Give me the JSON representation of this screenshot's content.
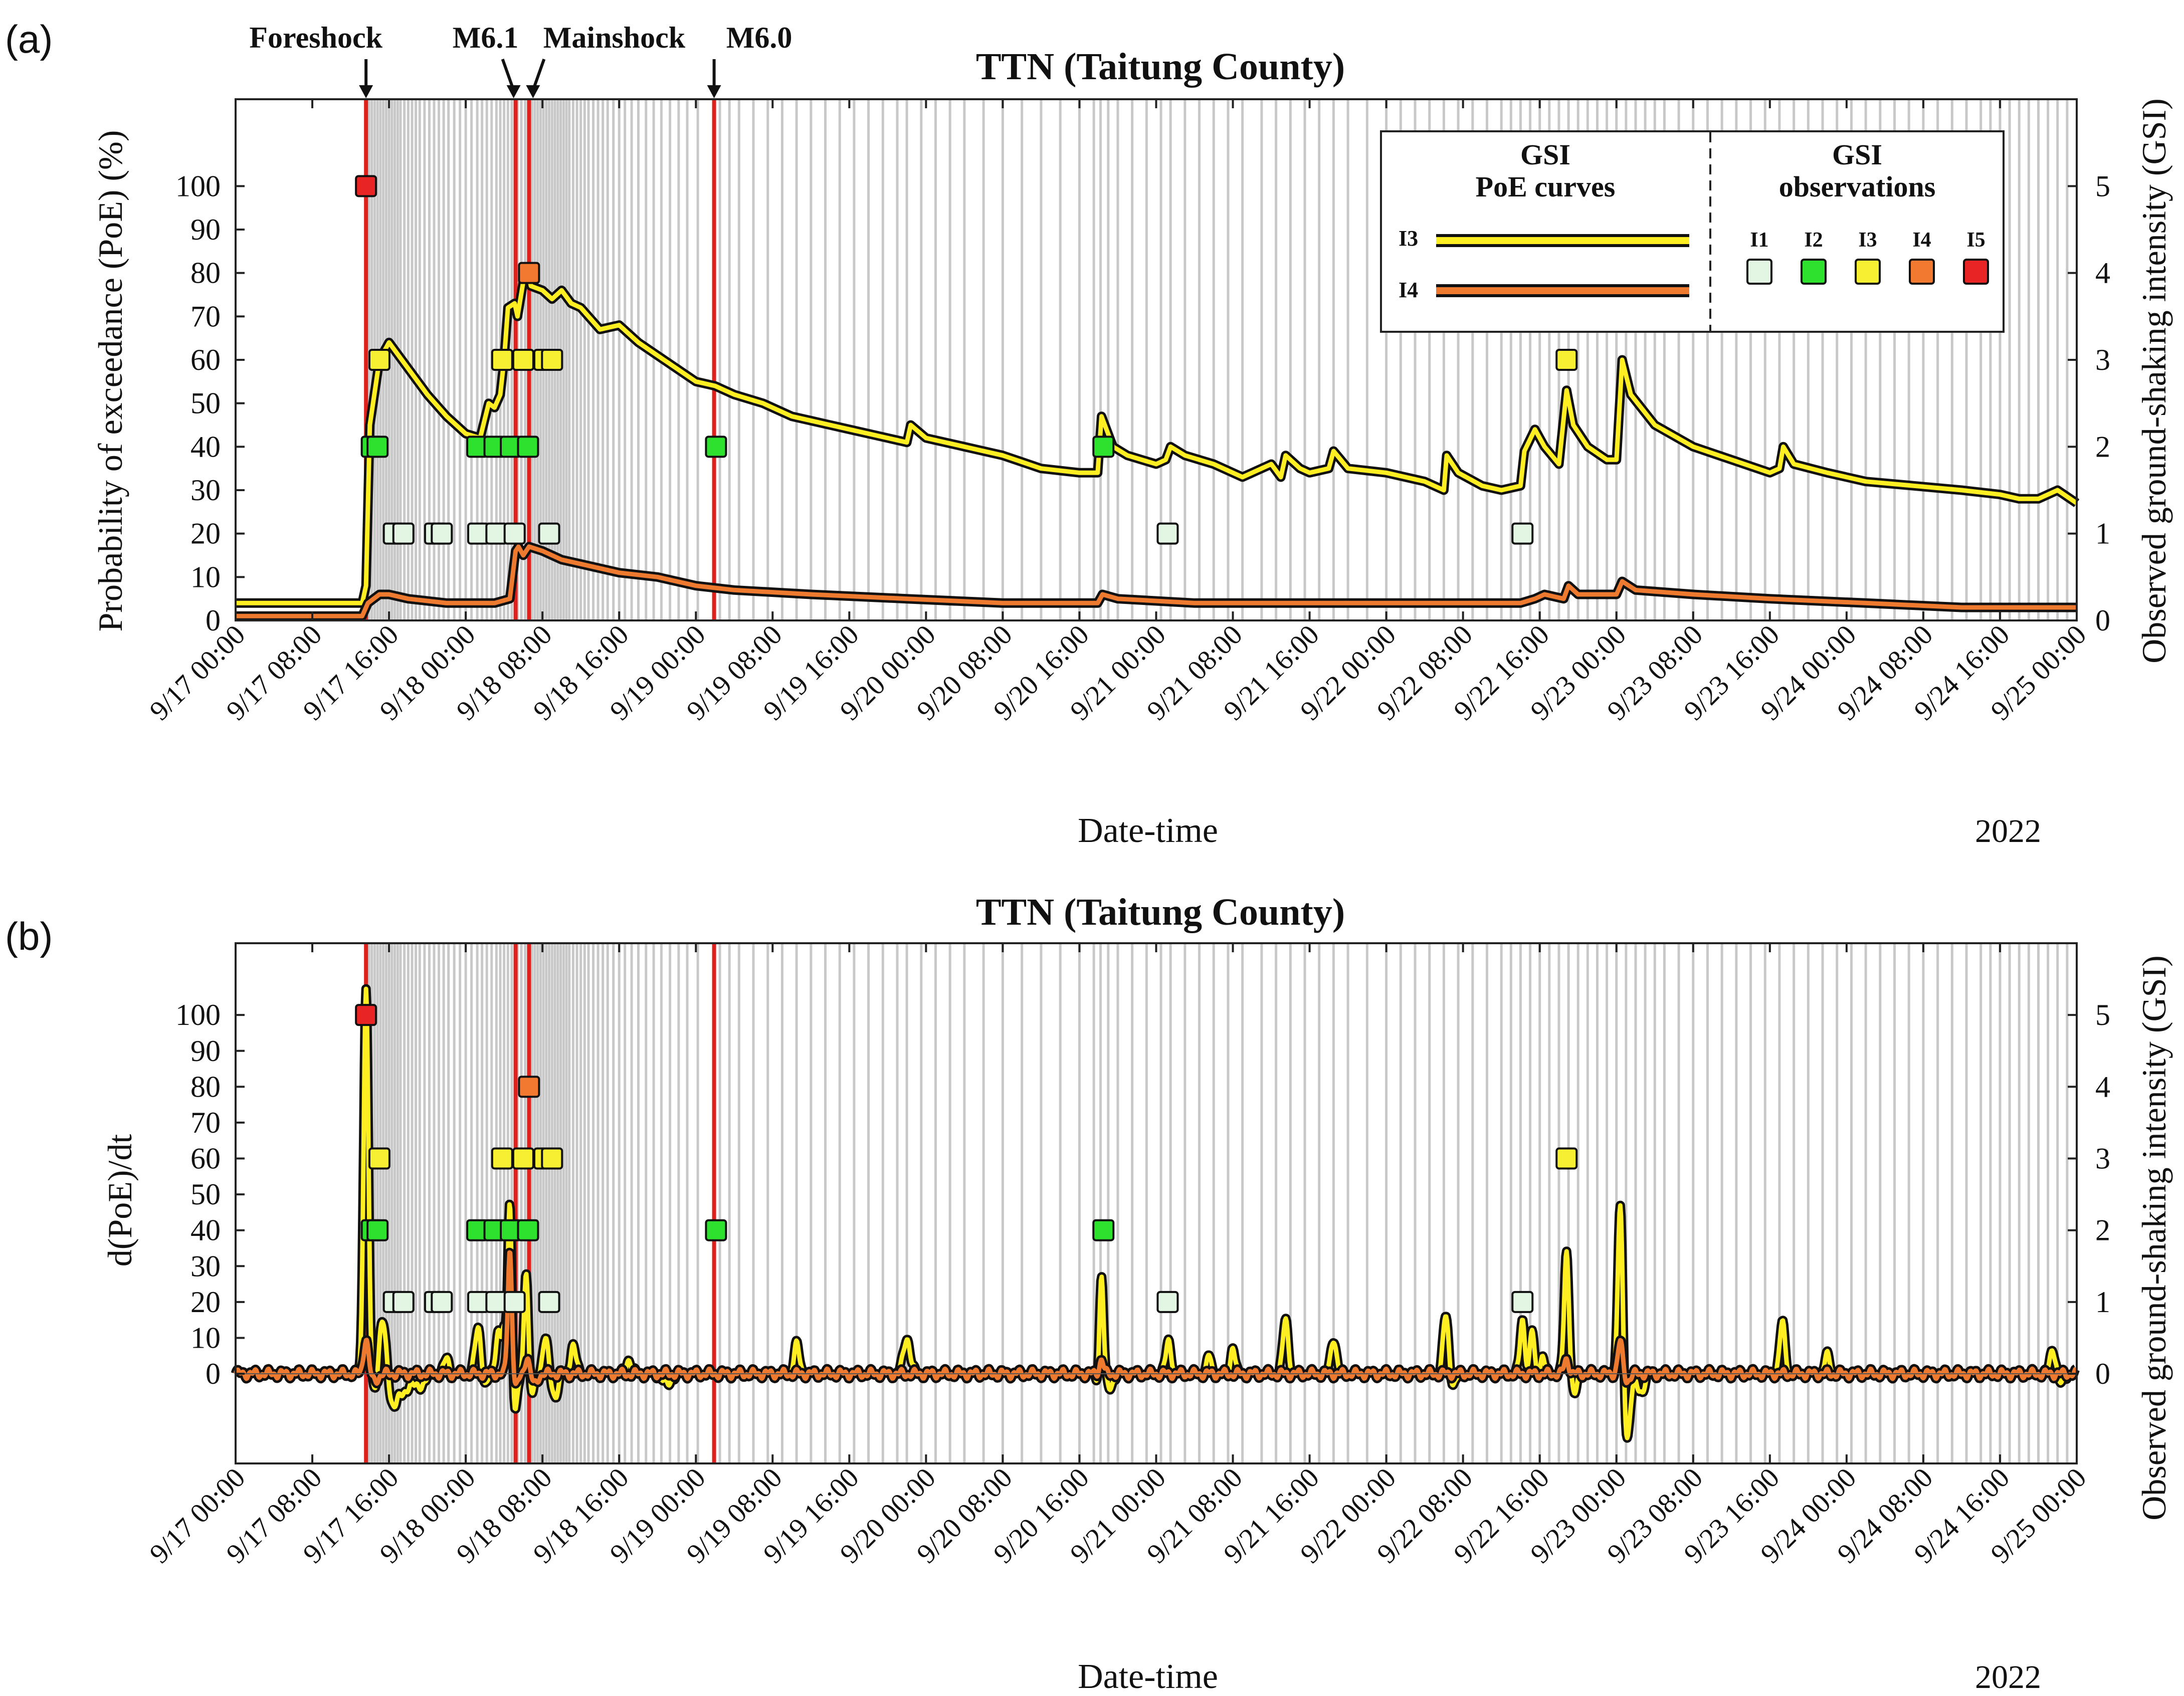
{
  "figure_year": "2022",
  "colors": {
    "frame": "#222222",
    "aftershock_line": "#c8c8c8",
    "event_line": "#e0201c",
    "i3_curve": "#ffee22",
    "i4_curve": "#ee7a30",
    "curve_outline": "#111111",
    "i1": "#e3f6e3",
    "i2": "#2ee12e",
    "i3": "#f7f032",
    "i4": "#f27a30",
    "i5": "#e82424"
  },
  "shared": {
    "x_range_hours": [
      0,
      192
    ],
    "x_ticks": [
      {
        "h": 0,
        "label": "9/17 00:00"
      },
      {
        "h": 8,
        "label": "9/17 08:00"
      },
      {
        "h": 16,
        "label": "9/17 16:00"
      },
      {
        "h": 24,
        "label": "9/18 00:00"
      },
      {
        "h": 32,
        "label": "9/18 08:00"
      },
      {
        "h": 40,
        "label": "9/18 16:00"
      },
      {
        "h": 48,
        "label": "9/19 00:00"
      },
      {
        "h": 56,
        "label": "9/19 08:00"
      },
      {
        "h": 64,
        "label": "9/19 16:00"
      },
      {
        "h": 72,
        "label": "9/20 00:00"
      },
      {
        "h": 80,
        "label": "9/20 08:00"
      },
      {
        "h": 88,
        "label": "9/20 16:00"
      },
      {
        "h": 96,
        "label": "9/21 00:00"
      },
      {
        "h": 104,
        "label": "9/21 08:00"
      },
      {
        "h": 112,
        "label": "9/21 16:00"
      },
      {
        "h": 120,
        "label": "9/22 00:00"
      },
      {
        "h": 128,
        "label": "9/22 08:00"
      },
      {
        "h": 136,
        "label": "9/22 16:00"
      },
      {
        "h": 144,
        "label": "9/23 00:00"
      },
      {
        "h": 152,
        "label": "9/23 08:00"
      },
      {
        "h": 160,
        "label": "9/23 16:00"
      },
      {
        "h": 168,
        "label": "9/24 00:00"
      },
      {
        "h": 176,
        "label": "9/24 08:00"
      },
      {
        "h": 184,
        "label": "9/24 16:00"
      },
      {
        "h": 192,
        "label": "9/25 00:00"
      }
    ],
    "event_lines_h": [
      13.6,
      29.2,
      30.6,
      49.9
    ],
    "events": [
      {
        "label": "Foreshock",
        "h": 13.6
      },
      {
        "label": "M6.1",
        "h": 29.2
      },
      {
        "label": "Mainshock",
        "h": 30.6
      },
      {
        "label": "M6.0",
        "h": 49.9
      }
    ],
    "aftershock_times_h": [
      13.9,
      14.2,
      14.5,
      14.8,
      15.1,
      15.4,
      15.7,
      16.0,
      16.3,
      16.6,
      16.9,
      17.2,
      17.6,
      18.0,
      18.4,
      18.8,
      19.2,
      19.7,
      20.2,
      20.7,
      21.2,
      21.7,
      22.2,
      22.8,
      23.4,
      24.0,
      24.6,
      25.2,
      25.7,
      26.2,
      26.7,
      27.2,
      27.6,
      28.0,
      28.4,
      28.8,
      29.4,
      29.8,
      30.2,
      30.9,
      31.2,
      31.5,
      31.8,
      32.1,
      32.4,
      32.7,
      33.0,
      33.3,
      33.6,
      33.9,
      34.2,
      34.5,
      34.8,
      35.2,
      35.6,
      36.0,
      36.4,
      36.8,
      37.3,
      37.8,
      38.3,
      38.8,
      39.4,
      40.0,
      40.6,
      41.3,
      42.0,
      42.8,
      43.6,
      44.4,
      45.3,
      46.2,
      47.1,
      48.2,
      50.5,
      51.5,
      52.5,
      54.0,
      55.5,
      57.0,
      58.5,
      60.0,
      61.5,
      63.0,
      64.5,
      66.0,
      67.5,
      69.0,
      70.0,
      71.5,
      73.0,
      74.5,
      76.0,
      78.0,
      80.0,
      82.0,
      84.0,
      86.0,
      88.0,
      89.5,
      90.2,
      91.0,
      92.0,
      93.5,
      95.0,
      96.5,
      97.5,
      99.0,
      100.5,
      102.0,
      103.5,
      105.0,
      107.0,
      108.5,
      110.0,
      111.5,
      113.0,
      114.5,
      116.0,
      118.0,
      120.0,
      121.5,
      123.0,
      124.5,
      126.0,
      127.5,
      129.0,
      130.5,
      132.0,
      133.0,
      134.0,
      135.0,
      136.0,
      137.0,
      138.0,
      139.0,
      140.0,
      141.0,
      142.0,
      143.0,
      144.0,
      145.0,
      146.0,
      147.0,
      148.0,
      149.0,
      150.5,
      152.0,
      153.5,
      155.0,
      156.5,
      158.0,
      159.5,
      161.0,
      162.5,
      164.0,
      165.5,
      167.0,
      168.5,
      170.0,
      171.5,
      173.0,
      174.5,
      176.0,
      177.5,
      179.0,
      180.5,
      182.0,
      183.0,
      184.0,
      185.0,
      186.0,
      187.0,
      188.0,
      189.0,
      190.0,
      191.0
    ],
    "gsi_observations": [
      {
        "h": 13.6,
        "gsi": 5
      },
      {
        "h": 14.2,
        "gsi": 2
      },
      {
        "h": 14.8,
        "gsi": 2
      },
      {
        "h": 15.0,
        "gsi": 3
      },
      {
        "h": 16.5,
        "gsi": 1
      },
      {
        "h": 17.5,
        "gsi": 1
      },
      {
        "h": 20.8,
        "gsi": 1
      },
      {
        "h": 21.5,
        "gsi": 1
      },
      {
        "h": 25.2,
        "gsi": 2
      },
      {
        "h": 25.3,
        "gsi": 1
      },
      {
        "h": 27.0,
        "gsi": 2
      },
      {
        "h": 27.2,
        "gsi": 1
      },
      {
        "h": 27.8,
        "gsi": 3
      },
      {
        "h": 28.7,
        "gsi": 2
      },
      {
        "h": 29.1,
        "gsi": 1
      },
      {
        "h": 30.0,
        "gsi": 3
      },
      {
        "h": 30.5,
        "gsi": 2
      },
      {
        "h": 30.6,
        "gsi": 4
      },
      {
        "h": 32.2,
        "gsi": 3
      },
      {
        "h": 33.0,
        "gsi": 3
      },
      {
        "h": 32.7,
        "gsi": 1
      },
      {
        "h": 50.1,
        "gsi": 2
      },
      {
        "h": 90.5,
        "gsi": 2
      },
      {
        "h": 97.2,
        "gsi": 1
      },
      {
        "h": 134.2,
        "gsi": 1
      },
      {
        "h": 138.8,
        "gsi": 3
      }
    ]
  },
  "chart_data": [
    {
      "type": "line",
      "panel_label": "(a)",
      "title": "TTN (Taitung County)",
      "xlabel": "Date-time",
      "ylabel": "Probability of exceedance (PoE) (%)",
      "ylabel_right": "Observed ground-shaking intensity (GSI)",
      "ylim": [
        0,
        120
      ],
      "yticks": [
        0,
        10,
        20,
        30,
        40,
        50,
        60,
        70,
        80,
        90,
        100
      ],
      "ylim_right": [
        0,
        6
      ],
      "yticks_right": [
        0,
        1,
        2,
        3,
        4,
        5
      ],
      "series": [
        {
          "name": "I3",
          "color_key": "i3_curve",
          "x": [
            0,
            13.2,
            13.6,
            14.0,
            15.0,
            16.0,
            18.0,
            20.0,
            22.0,
            24.0,
            25.5,
            26.4,
            27.0,
            27.6,
            28.0,
            28.4,
            29.1,
            29.4,
            30.0,
            30.5,
            30.8,
            32.0,
            33.0,
            34.0,
            35.0,
            36.0,
            38.0,
            40.0,
            42.0,
            44.0,
            46.0,
            48.0,
            50.0,
            52.0,
            55.0,
            58.0,
            60.0,
            64.0,
            68.0,
            70.0,
            70.4,
            72.0,
            76.0,
            80.0,
            84.0,
            88.0,
            89.9,
            90.3,
            91.5,
            93.0,
            96.0,
            97.0,
            97.5,
            99.0,
            102.0,
            105.0,
            108.0,
            109.0,
            109.5,
            111.0,
            112.0,
            114.0,
            114.5,
            116.0,
            120.0,
            124.0,
            126.0,
            126.3,
            127.5,
            130.0,
            132.0,
            134.0,
            134.4,
            135.5,
            136.5,
            138.0,
            138.8,
            139.5,
            141.0,
            143.0,
            144.0,
            144.6,
            145.5,
            148.0,
            152.0,
            156.0,
            160.0,
            161.0,
            161.4,
            162.5,
            166.0,
            170.0,
            175.0,
            180.0,
            184.0,
            186.0,
            187.0,
            188.0,
            190.0,
            192.0
          ],
          "y": [
            4,
            4,
            8,
            45,
            60,
            64,
            58,
            52,
            47,
            43,
            42,
            50,
            49,
            52,
            60,
            72,
            73,
            70,
            78,
            80,
            77,
            76,
            74,
            76,
            73,
            72,
            67,
            68,
            64,
            61,
            58,
            55,
            54,
            52,
            50,
            47,
            46,
            44,
            42,
            41,
            45,
            42,
            40,
            38,
            35,
            34,
            34,
            47,
            40,
            38,
            36,
            37,
            40,
            38,
            36,
            33,
            36,
            33,
            38,
            35,
            34,
            35,
            39,
            35,
            34,
            32,
            30,
            38,
            34,
            31,
            30,
            31,
            39,
            44,
            40,
            36,
            53,
            45,
            40,
            37,
            37,
            60,
            52,
            45,
            40,
            37,
            34,
            35,
            40,
            36,
            34,
            32,
            31,
            30,
            29,
            28,
            28,
            28,
            30,
            27
          ]
        },
        {
          "name": "I4",
          "color_key": "i4_curve",
          "x": [
            0,
            13.2,
            13.8,
            15.0,
            16.0,
            18.0,
            22.0,
            25.0,
            27.0,
            28.6,
            29.2,
            29.5,
            30.0,
            30.6,
            32.0,
            34.0,
            36.0,
            40.0,
            44.0,
            48.0,
            52.0,
            60.0,
            70.0,
            80.0,
            89.9,
            90.4,
            92.0,
            100.0,
            110.0,
            120.0,
            130.0,
            134.0,
            135.5,
            136.5,
            138.5,
            139.0,
            140.0,
            144.0,
            144.6,
            146.0,
            152.0,
            160.0,
            170.0,
            180.0,
            192.0
          ],
          "y": [
            1,
            1,
            4,
            6,
            6,
            5,
            4,
            4,
            4,
            5,
            16,
            17,
            15,
            17,
            16,
            14,
            13,
            11,
            10,
            8,
            7,
            6,
            5,
            4,
            4,
            6,
            5,
            4,
            4,
            4,
            4,
            4,
            5,
            6,
            5,
            8,
            6,
            6,
            9,
            7,
            6,
            5,
            4,
            3,
            3
          ]
        }
      ],
      "legend": {
        "curves_title_line1": "GSI",
        "curves_title_line2": "PoE curves",
        "obs_title_line1": "GSI",
        "obs_title_line2": "observations",
        "curve_labels": [
          "I3",
          "I4"
        ],
        "obs_labels": [
          "I1",
          "I2",
          "I3",
          "I4",
          "I5"
        ],
        "placement": "top-right"
      }
    },
    {
      "type": "line",
      "panel_label": "(b)",
      "title": "TTN (Taitung County)",
      "xlabel": "Date-time",
      "ylabel": "d(PoE)/dt",
      "ylabel_right": "Observed ground-shaking intensity (GSI)",
      "ylim": [
        -25,
        120
      ],
      "yticks": [
        0,
        10,
        20,
        30,
        40,
        50,
        60,
        70,
        80,
        90,
        100
      ],
      "ylim_right": [
        -1.25,
        6
      ],
      "yticks_right": [
        0,
        1,
        2,
        3,
        4,
        5
      ],
      "baseline_zero": true,
      "series": [
        {
          "name": "I3",
          "color_key": "i3_curve",
          "spikes": [
            [
              13.6,
              108,
              0.35
            ],
            [
              14.6,
              -8,
              0.5
            ],
            [
              15.3,
              18,
              0.6
            ],
            [
              16.3,
              -9,
              0.8
            ],
            [
              17.5,
              -5,
              0.6
            ],
            [
              19.0,
              -4,
              0.8
            ],
            [
              22.0,
              4,
              0.4
            ],
            [
              25.3,
              13,
              0.45
            ],
            [
              26.0,
              -4,
              0.4
            ],
            [
              27.4,
              12,
              0.4
            ],
            [
              28.0,
              10,
              0.3
            ],
            [
              28.6,
              50,
              0.3
            ],
            [
              29.1,
              -12,
              0.4
            ],
            [
              30.3,
              30,
              0.3
            ],
            [
              30.9,
              -6,
              0.4
            ],
            [
              32.3,
              10,
              0.4
            ],
            [
              33.3,
              -6,
              0.5
            ],
            [
              35.2,
              8,
              0.4
            ],
            [
              41.0,
              4,
              0.4
            ],
            [
              45.0,
              -3,
              0.6
            ],
            [
              58.5,
              8,
              0.4
            ],
            [
              70.0,
              10,
              0.5
            ],
            [
              89.9,
              -3,
              0.3
            ],
            [
              90.3,
              28,
              0.3
            ],
            [
              91.1,
              -4,
              0.5
            ],
            [
              97.3,
              9,
              0.4
            ],
            [
              101.5,
              5,
              0.3
            ],
            [
              104.0,
              8,
              0.3
            ],
            [
              109.5,
              15,
              0.4
            ],
            [
              114.5,
              10,
              0.4
            ],
            [
              126.2,
              16,
              0.4
            ],
            [
              127.0,
              -3,
              0.4
            ],
            [
              134.2,
              15,
              0.35
            ],
            [
              135.2,
              12,
              0.3
            ],
            [
              136.3,
              5,
              0.3
            ],
            [
              138.8,
              34,
              0.35
            ],
            [
              139.6,
              -6,
              0.4
            ],
            [
              144.4,
              48,
              0.35
            ],
            [
              145.1,
              -18,
              0.45
            ],
            [
              146.5,
              -5,
              0.6
            ],
            [
              161.3,
              14,
              0.4
            ],
            [
              166.0,
              5,
              0.4
            ],
            [
              189.5,
              7,
              0.4
            ],
            [
              190.4,
              -3,
              0.4
            ]
          ]
        },
        {
          "name": "I4",
          "color_key": "i4_curve",
          "spikes": [
            [
              13.6,
              10,
              0.35
            ],
            [
              14.5,
              -2,
              0.5
            ],
            [
              28.6,
              35,
              0.3
            ],
            [
              29.2,
              -4,
              0.4
            ],
            [
              30.4,
              5,
              0.3
            ],
            [
              31.2,
              -3,
              0.4
            ],
            [
              90.3,
              4,
              0.3
            ],
            [
              138.8,
              4,
              0.35
            ],
            [
              144.4,
              9,
              0.35
            ],
            [
              145.1,
              -2,
              0.45
            ]
          ]
        }
      ]
    }
  ]
}
